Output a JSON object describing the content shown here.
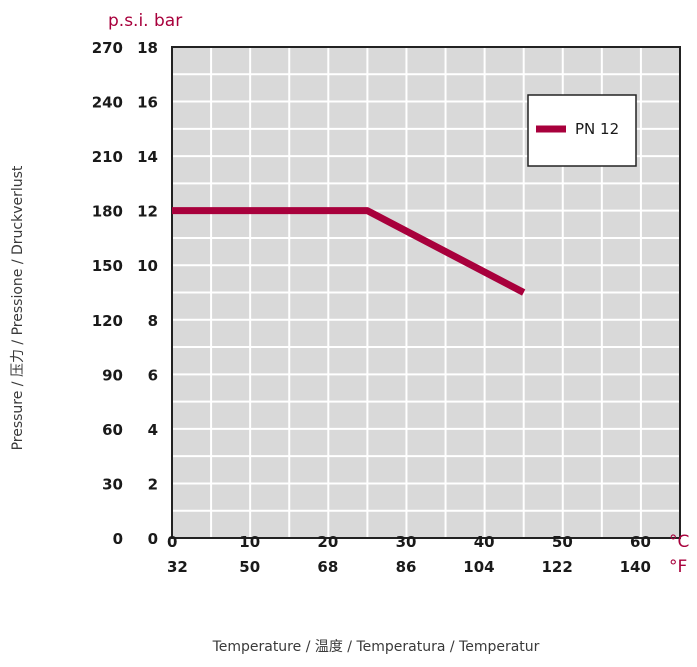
{
  "chart_data": {
    "type": "line",
    "ylabel": "Pressure / 压力 / Pressione / Druckverlust",
    "xlabel": "Temperature /  温度  / Temperatura / Temperatur",
    "y_units_label": "p.s.i.  bar",
    "x_unit_c": "°C",
    "x_unit_f": "°F",
    "xlim": [
      0,
      65
    ],
    "ylim": [
      0,
      18
    ],
    "x_ticks_c": [
      "0",
      "10",
      "20",
      "30",
      "40",
      "50",
      "60"
    ],
    "x_ticks_f": [
      "32",
      "50",
      "68",
      "86",
      "104",
      "122",
      "140"
    ],
    "y_ticks_bar": [
      "0",
      "2",
      "4",
      "6",
      "8",
      "10",
      "12",
      "14",
      "16",
      "18"
    ],
    "y_ticks_psi": [
      "0",
      "30",
      "60",
      "90",
      "120",
      "150",
      "180",
      "210",
      "240",
      "270"
    ],
    "grid": true,
    "legend_position": "top-right",
    "series": [
      {
        "name": "PN 12",
        "color": "#a8003c",
        "x": [
          0,
          25,
          45
        ],
        "y": [
          12,
          12,
          9
        ]
      }
    ]
  }
}
